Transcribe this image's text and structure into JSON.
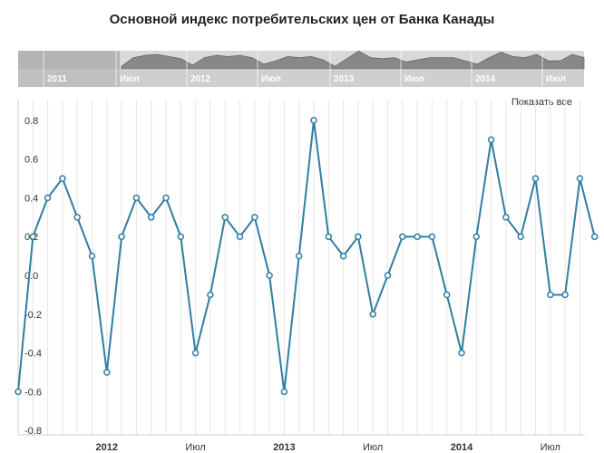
{
  "chart_data": {
    "type": "line",
    "title": "Основной индекс потребительских цен от Банка Канады",
    "xlabel": "",
    "ylabel": "",
    "ylim": [
      -0.8,
      0.8
    ],
    "yticks": [
      "0.8",
      "0.6",
      "0.4",
      "0.2",
      "0.0",
      "-0.2",
      "-0.4",
      "-0.6",
      "-0.8"
    ],
    "xticks": [
      {
        "label": "2012",
        "month": 12,
        "bold": true
      },
      {
        "label": "Июл",
        "month": 18,
        "bold": false
      },
      {
        "label": "2013",
        "month": 24,
        "bold": true
      },
      {
        "label": "Июл",
        "month": 30,
        "bold": false
      },
      {
        "label": "2014",
        "month": 36,
        "bold": true
      },
      {
        "label": "Июл",
        "month": 42,
        "bold": false
      }
    ],
    "series": [
      {
        "color": "#2f7ea1",
        "points": [
          {
            "x": "2011-07",
            "y": -0.6
          },
          {
            "x": "2011-08",
            "y": 0.2
          },
          {
            "x": "2011-09",
            "y": 0.4
          },
          {
            "x": "2011-10",
            "y": 0.5
          },
          {
            "x": "2011-11",
            "y": 0.3
          },
          {
            "x": "2011-12",
            "y": 0.1
          },
          {
            "x": "2012-01",
            "y": -0.5
          },
          {
            "x": "2012-02",
            "y": 0.2
          },
          {
            "x": "2012-03",
            "y": 0.4
          },
          {
            "x": "2012-04",
            "y": 0.3
          },
          {
            "x": "2012-05",
            "y": 0.4
          },
          {
            "x": "2012-06",
            "y": 0.2
          },
          {
            "x": "2012-07",
            "y": -0.4
          },
          {
            "x": "2012-08",
            "y": -0.1
          },
          {
            "x": "2012-09",
            "y": 0.3
          },
          {
            "x": "2012-10",
            "y": 0.2
          },
          {
            "x": "2012-11",
            "y": 0.3
          },
          {
            "x": "2012-12",
            "y": 0.0
          },
          {
            "x": "2013-01",
            "y": -0.6
          },
          {
            "x": "2013-02",
            "y": 0.1
          },
          {
            "x": "2013-03",
            "y": 0.8
          },
          {
            "x": "2013-04",
            "y": 0.2
          },
          {
            "x": "2013-05",
            "y": 0.1
          },
          {
            "x": "2013-06",
            "y": 0.2
          },
          {
            "x": "2013-07",
            "y": -0.2
          },
          {
            "x": "2013-08",
            "y": 0.0
          },
          {
            "x": "2013-09",
            "y": 0.2
          },
          {
            "x": "2013-10",
            "y": 0.2
          },
          {
            "x": "2013-11",
            "y": 0.2
          },
          {
            "x": "2013-12",
            "y": -0.1
          },
          {
            "x": "2014-01",
            "y": -0.4
          },
          {
            "x": "2014-02",
            "y": 0.2
          },
          {
            "x": "2014-03",
            "y": 0.7
          },
          {
            "x": "2014-04",
            "y": 0.3
          },
          {
            "x": "2014-05",
            "y": 0.2
          },
          {
            "x": "2014-06",
            "y": 0.5
          },
          {
            "x": "2014-07",
            "y": -0.1
          },
          {
            "x": "2014-08",
            "y": -0.1
          },
          {
            "x": "2014-09",
            "y": 0.5
          },
          {
            "x": "2014-10",
            "y": 0.2
          }
        ]
      }
    ],
    "grid": true,
    "legend": "none"
  },
  "navigator": {
    "labels": [
      "2011",
      "Июл",
      "2012",
      "Июл",
      "2013",
      "Июл",
      "2014",
      "Июл"
    ]
  },
  "controls": {
    "reset_zoom_label": "Показать все"
  },
  "colors": {
    "line": "#2f7ea1",
    "marker_fill": "#ffffff",
    "grid": "#e6e6e6",
    "navigator_bg": "#d9d9d9",
    "navigator_area": "#888888",
    "navigator_mask": "#aaaaaa"
  }
}
